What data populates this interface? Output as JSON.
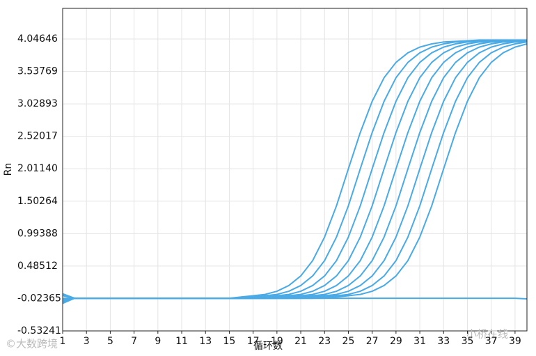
{
  "chart_data": {
    "type": "line",
    "xlabel": "循环数",
    "ylabel": "Rn",
    "x": [
      1,
      2,
      3,
      4,
      5,
      6,
      7,
      8,
      9,
      10,
      11,
      12,
      13,
      14,
      15,
      16,
      17,
      18,
      19,
      20,
      21,
      22,
      23,
      24,
      25,
      26,
      27,
      28,
      29,
      30,
      31,
      32,
      33,
      34,
      35,
      36,
      37,
      38,
      39,
      40
    ],
    "xlim": [
      1,
      40
    ],
    "xticks": [
      1,
      3,
      5,
      7,
      9,
      11,
      13,
      15,
      17,
      19,
      21,
      23,
      25,
      27,
      29,
      31,
      33,
      35,
      37,
      39
    ],
    "ylim": [
      -0.53241,
      4.5276
    ],
    "yticks": [
      -0.53241,
      -0.02365,
      0.48512,
      0.99388,
      1.50264,
      {
        "value": 2.0114,
        "label": "2.01140"
      },
      2.52017,
      3.02893,
      3.53769,
      4.04646
    ],
    "grid": true,
    "series": [
      {
        "color": "#4aaae6",
        "values": [
          -0.1,
          -0.02,
          -0.02,
          -0.02,
          -0.02,
          -0.02,
          -0.02,
          -0.02,
          -0.02,
          -0.02,
          -0.02,
          -0.02,
          -0.02,
          -0.02,
          -0.02,
          0.0,
          0.02,
          0.04,
          0.09,
          0.18,
          0.33,
          0.57,
          0.94,
          1.43,
          2.01,
          2.58,
          3.07,
          3.44,
          3.68,
          3.83,
          3.92,
          3.97,
          4.0,
          4.01,
          4.02,
          4.03,
          4.03,
          4.03,
          4.03,
          4.03
        ]
      },
      {
        "color": "#4aaae6",
        "values": [
          0.04,
          -0.02,
          -0.02,
          -0.02,
          -0.02,
          -0.02,
          -0.02,
          -0.02,
          -0.02,
          -0.02,
          -0.02,
          -0.02,
          -0.02,
          -0.02,
          -0.02,
          -0.02,
          0.0,
          0.02,
          0.04,
          0.09,
          0.18,
          0.33,
          0.57,
          0.94,
          1.43,
          2.01,
          2.58,
          3.07,
          3.44,
          3.68,
          3.83,
          3.92,
          3.97,
          4.0,
          4.01,
          4.02,
          4.03,
          4.03,
          4.03,
          4.03
        ]
      },
      {
        "color": "#4aaae6",
        "values": [
          -0.08,
          -0.02,
          -0.02,
          -0.02,
          -0.02,
          -0.02,
          -0.02,
          -0.02,
          -0.02,
          -0.02,
          -0.02,
          -0.02,
          -0.02,
          -0.02,
          -0.02,
          -0.02,
          -0.02,
          0.0,
          0.02,
          0.04,
          0.09,
          0.18,
          0.33,
          0.57,
          0.94,
          1.43,
          2.01,
          2.58,
          3.07,
          3.44,
          3.68,
          3.83,
          3.92,
          3.97,
          4.0,
          4.01,
          4.02,
          4.03,
          4.03,
          4.03
        ]
      },
      {
        "color": "#4aaae6",
        "values": [
          0.02,
          -0.02,
          -0.02,
          -0.02,
          -0.02,
          -0.02,
          -0.02,
          -0.02,
          -0.02,
          -0.02,
          -0.02,
          -0.02,
          -0.02,
          -0.02,
          -0.02,
          -0.02,
          -0.02,
          -0.02,
          0.0,
          0.02,
          0.04,
          0.09,
          0.18,
          0.33,
          0.57,
          0.94,
          1.43,
          2.01,
          2.58,
          3.07,
          3.44,
          3.68,
          3.83,
          3.92,
          3.97,
          4.0,
          4.01,
          4.02,
          4.03,
          4.03
        ]
      },
      {
        "color": "#4aaae6",
        "values": [
          -0.06,
          -0.02,
          -0.02,
          -0.02,
          -0.02,
          -0.02,
          -0.02,
          -0.02,
          -0.02,
          -0.02,
          -0.02,
          -0.02,
          -0.02,
          -0.02,
          -0.02,
          -0.02,
          -0.02,
          -0.02,
          -0.02,
          0.0,
          0.02,
          0.04,
          0.09,
          0.18,
          0.33,
          0.57,
          0.94,
          1.43,
          2.01,
          2.58,
          3.07,
          3.44,
          3.68,
          3.83,
          3.92,
          3.97,
          4.0,
          4.01,
          4.02,
          4.03
        ]
      },
      {
        "color": "#4aaae6",
        "values": [
          0.03,
          -0.02,
          -0.02,
          -0.02,
          -0.02,
          -0.02,
          -0.02,
          -0.02,
          -0.02,
          -0.02,
          -0.02,
          -0.02,
          -0.02,
          -0.02,
          -0.02,
          -0.02,
          -0.02,
          -0.02,
          -0.02,
          -0.02,
          0.0,
          0.02,
          0.04,
          0.09,
          0.18,
          0.33,
          0.57,
          0.94,
          1.43,
          2.01,
          2.58,
          3.07,
          3.44,
          3.68,
          3.83,
          3.92,
          3.97,
          4.0,
          4.01,
          4.02
        ]
      },
      {
        "color": "#4aaae6",
        "values": [
          -0.09,
          -0.02,
          -0.02,
          -0.02,
          -0.02,
          -0.02,
          -0.02,
          -0.02,
          -0.02,
          -0.02,
          -0.02,
          -0.02,
          -0.02,
          -0.02,
          -0.02,
          -0.02,
          -0.02,
          -0.02,
          -0.02,
          -0.02,
          -0.02,
          0.0,
          0.02,
          0.04,
          0.09,
          0.18,
          0.33,
          0.57,
          0.94,
          1.43,
          2.01,
          2.58,
          3.07,
          3.44,
          3.68,
          3.83,
          3.92,
          3.97,
          4.0,
          4.01
        ]
      },
      {
        "color": "#4aaae6",
        "values": [
          0.05,
          -0.02,
          -0.02,
          -0.02,
          -0.02,
          -0.02,
          -0.02,
          -0.02,
          -0.02,
          -0.02,
          -0.02,
          -0.02,
          -0.02,
          -0.02,
          -0.02,
          -0.02,
          -0.02,
          -0.02,
          -0.02,
          -0.02,
          -0.02,
          -0.02,
          0.0,
          0.02,
          0.04,
          0.09,
          0.18,
          0.33,
          0.57,
          0.94,
          1.43,
          2.01,
          2.58,
          3.07,
          3.44,
          3.68,
          3.83,
          3.92,
          3.97,
          4.0
        ]
      },
      {
        "color": "#4aaae6",
        "values": [
          -0.04,
          -0.02,
          -0.02,
          -0.02,
          -0.02,
          -0.02,
          -0.02,
          -0.02,
          -0.02,
          -0.02,
          -0.02,
          -0.02,
          -0.02,
          -0.02,
          -0.02,
          -0.02,
          -0.02,
          -0.02,
          -0.02,
          -0.02,
          -0.02,
          -0.02,
          -0.02,
          0.0,
          0.02,
          0.04,
          0.09,
          0.18,
          0.33,
          0.57,
          0.94,
          1.43,
          2.01,
          2.58,
          3.07,
          3.44,
          3.68,
          3.83,
          3.92,
          3.97
        ]
      },
      {
        "color": "#4aaae6",
        "values": [
          -0.02,
          -0.02,
          -0.02,
          -0.02,
          -0.02,
          -0.02,
          -0.02,
          -0.02,
          -0.02,
          -0.02,
          -0.02,
          -0.02,
          -0.02,
          -0.02,
          -0.02,
          -0.02,
          -0.02,
          -0.02,
          -0.02,
          -0.02,
          -0.02,
          -0.02,
          -0.02,
          -0.02,
          -0.02,
          -0.02,
          -0.02,
          -0.02,
          -0.02,
          -0.02,
          -0.02,
          -0.02,
          -0.02,
          -0.02,
          -0.02,
          -0.02,
          -0.02,
          -0.02,
          -0.02,
          -0.03
        ]
      }
    ],
    "watermarks": [
      "小桥在线",
      "©大数跨境"
    ]
  }
}
